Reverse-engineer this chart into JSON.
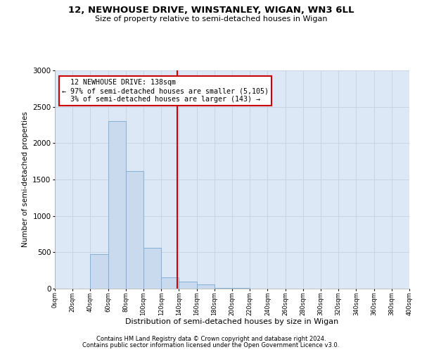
{
  "title1": "12, NEWHOUSE DRIVE, WINSTANLEY, WIGAN, WN3 6LL",
  "title2": "Size of property relative to semi-detached houses in Wigan",
  "xlabel": "Distribution of semi-detached houses by size in Wigan",
  "ylabel": "Number of semi-detached properties",
  "footer1": "Contains HM Land Registry data © Crown copyright and database right 2024.",
  "footer2": "Contains public sector information licensed under the Open Government Licence v3.0.",
  "property_size": 138,
  "property_label": "12 NEWHOUSE DRIVE: 138sqm",
  "pct_smaller": 97,
  "count_smaller": 5105,
  "pct_larger": 3,
  "count_larger": 143,
  "bin_edges": [
    0,
    20,
    40,
    60,
    80,
    100,
    120,
    140,
    160,
    180,
    200,
    220,
    240,
    260,
    280,
    300,
    320,
    340,
    360,
    380,
    400
  ],
  "bar_heights": [
    0,
    3,
    470,
    2300,
    1620,
    560,
    155,
    95,
    55,
    10,
    5,
    3,
    2,
    1,
    0,
    0,
    0,
    0,
    0,
    0
  ],
  "bar_color": "#c9d9ee",
  "bar_edge_color": "#7aaad0",
  "vline_color": "#cc0000",
  "vline_x": 138,
  "annotation_box_color": "#cc0000",
  "grid_color": "#c8d4e4",
  "bg_color": "#dce8f5",
  "ylim": [
    0,
    3000
  ],
  "xlim": [
    0,
    400
  ]
}
